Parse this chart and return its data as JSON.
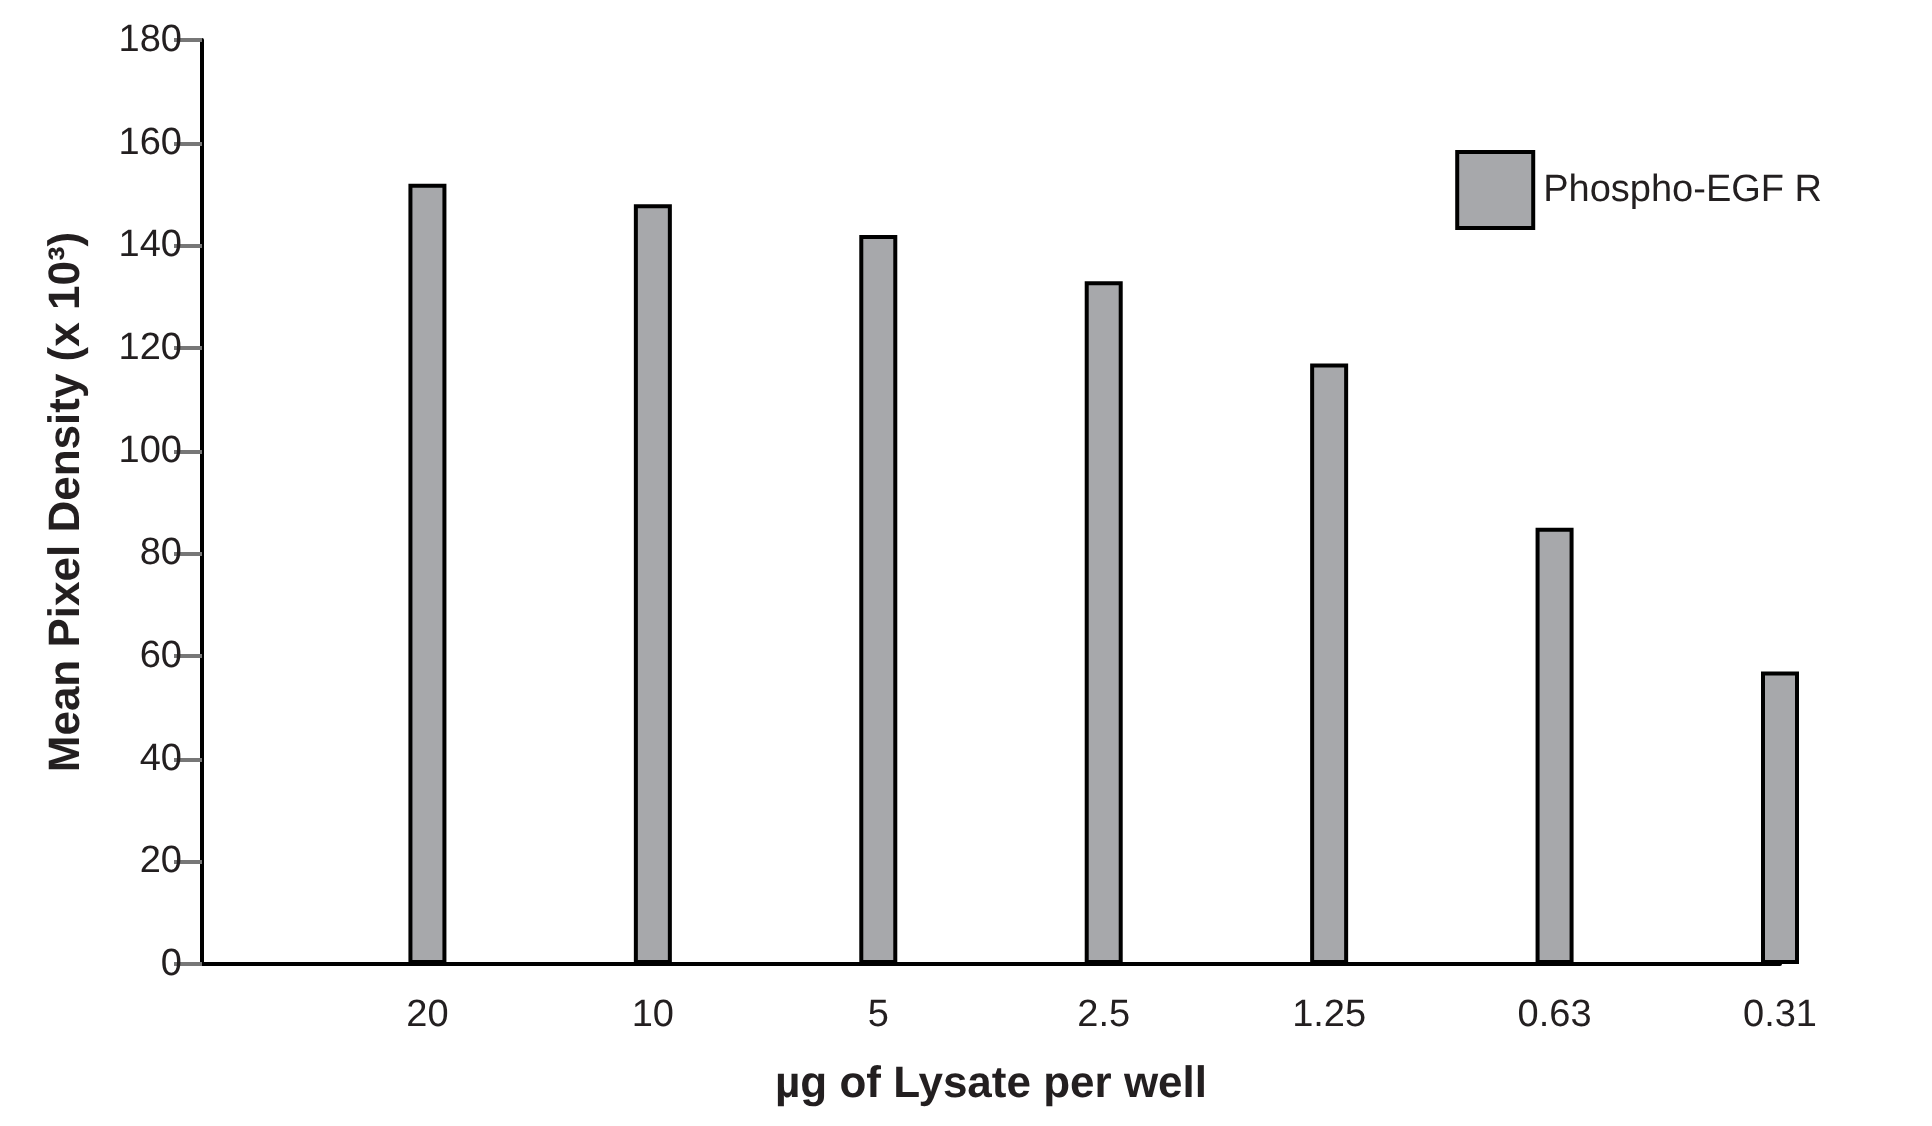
{
  "chart_data": {
    "type": "bar",
    "xlabel": "µg of Lysate per well",
    "ylabel": "Mean Pixel Density (x 10³)",
    "categories": [
      null,
      "20",
      "10",
      "5",
      "2.5",
      "1.25",
      "0.63",
      "0.31"
    ],
    "series": [
      {
        "name": "Phospho-EGF R",
        "color": "#a7a8ab",
        "values": [
          null,
          152,
          148,
          142,
          133,
          117,
          85,
          57
        ]
      }
    ],
    "ylim": [
      0,
      180
    ],
    "yticks": [
      0,
      20,
      40,
      60,
      80,
      100,
      120,
      140,
      160,
      180
    ],
    "grid": false,
    "legend": "top right"
  }
}
